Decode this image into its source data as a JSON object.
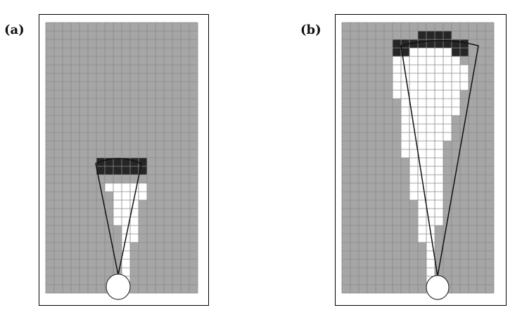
{
  "panels": [
    {
      "label": "(a)",
      "cell_colors": {
        "unknown": "#a6a6a6",
        "free": "#ffffff",
        "occupied": "#262626",
        "grid": "#8a8a8a",
        "sensor": "#ffffff"
      }
    },
    {
      "label": "(b)",
      "cell_colors": {
        "unknown": "#a6a6a6",
        "free": "#ffffff",
        "occupied": "#262626",
        "grid": "#8a8a8a",
        "sensor": "#ffffff"
      }
    }
  ]
}
